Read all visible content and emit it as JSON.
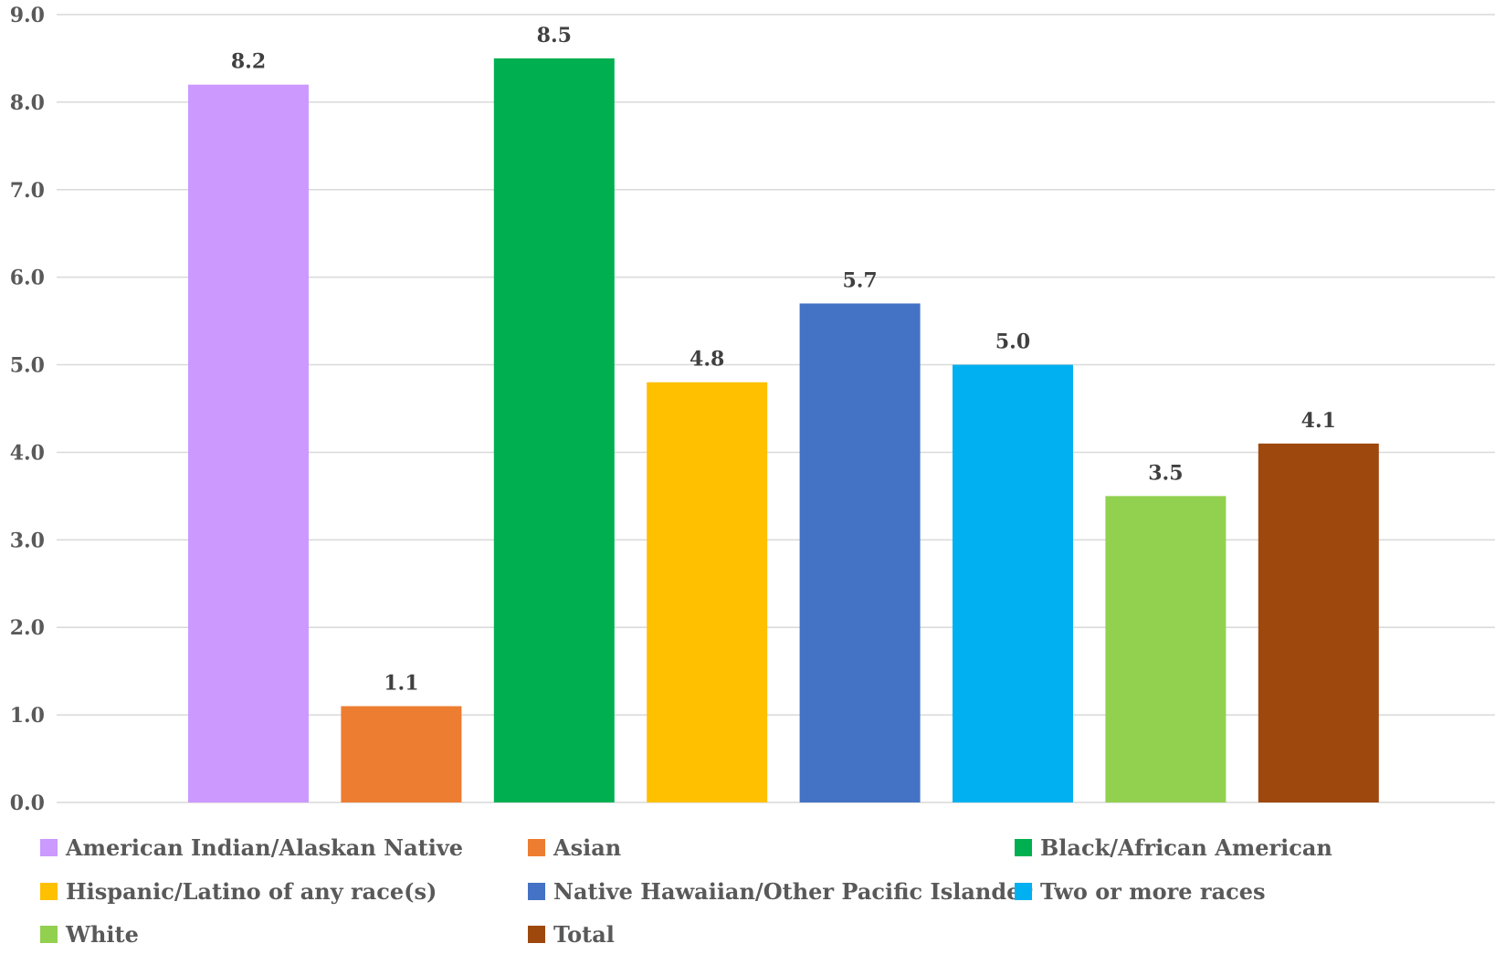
{
  "chart_data": {
    "type": "bar",
    "title": "",
    "xlabel": "",
    "ylabel": "",
    "ylim": [
      0,
      9
    ],
    "yticks": [
      "0.0",
      "1.0",
      "2.0",
      "3.0",
      "4.0",
      "5.0",
      "6.0",
      "7.0",
      "8.0",
      "9.0"
    ],
    "grid": true,
    "legend_position": "bottom",
    "series": [
      {
        "name": "American Indian/Alaskan Native",
        "value": 8.2,
        "label": "8.2",
        "color": "#CC99FF"
      },
      {
        "name": "Asian",
        "value": 1.1,
        "label": "1.1",
        "color": "#ED7D31"
      },
      {
        "name": "Black/African American",
        "value": 8.5,
        "label": "8.5",
        "color": "#00B050"
      },
      {
        "name": "Hispanic/Latino of any race(s)",
        "value": 4.8,
        "label": "4.8",
        "color": "#FFC000"
      },
      {
        "name": "Native Hawaiian/Other Pacific Islander",
        "value": 5.7,
        "label": "5.7",
        "color": "#4472C4"
      },
      {
        "name": "Two or more races",
        "value": 5.0,
        "label": "5.0",
        "color": "#00B0F0"
      },
      {
        "name": "White",
        "value": 3.5,
        "label": "3.5",
        "color": "#92D050"
      },
      {
        "name": "Total",
        "value": 4.1,
        "label": "4.1",
        "color": "#9E480E"
      }
    ]
  }
}
